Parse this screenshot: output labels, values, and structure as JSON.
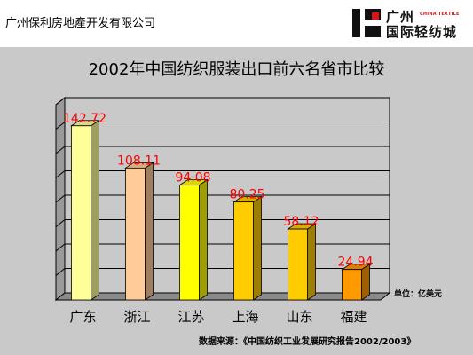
{
  "header": {
    "company": "广州保利房地產开发有限公司",
    "logo_cn_top": "广州",
    "logo_en": "CHINA TEXTILE",
    "logo_cn_bottom": "国际轻纺城"
  },
  "chart_data": {
    "type": "bar",
    "title": "2002年中国纺织服装出口前六名省市比较",
    "categories": [
      "广东",
      "浙江",
      "江苏",
      "上海",
      "山东",
      "福建"
    ],
    "values": [
      142.72,
      108.11,
      94.08,
      80.25,
      58.12,
      24.94
    ],
    "ylim": [
      0,
      160
    ],
    "grid": true,
    "bar_colors": [
      "#ffff99",
      "#ffcc99",
      "#ffff00",
      "#ffcc00",
      "#ffcc00",
      "#ff9900"
    ],
    "label_color": "#ff0000",
    "unit": "单位：亿美元",
    "source": "数据来源：《中国纺织工业发展研究报告2002/2003》"
  }
}
